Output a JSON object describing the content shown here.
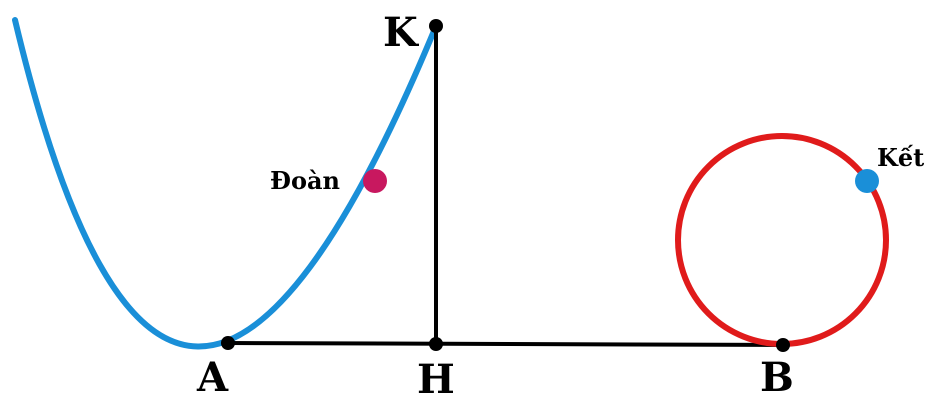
{
  "diagram": {
    "points": {
      "A": "A",
      "B": "B",
      "H": "H",
      "K": "K"
    },
    "characters": {
      "doan": "Đoàn",
      "ket": "Kết"
    },
    "colors": {
      "parabola": "#1a8fd8",
      "circle": "#e01b1b",
      "segments": "#000000",
      "doan_marker": "#c8185f",
      "ket_marker": "#1a8fd8"
    }
  }
}
